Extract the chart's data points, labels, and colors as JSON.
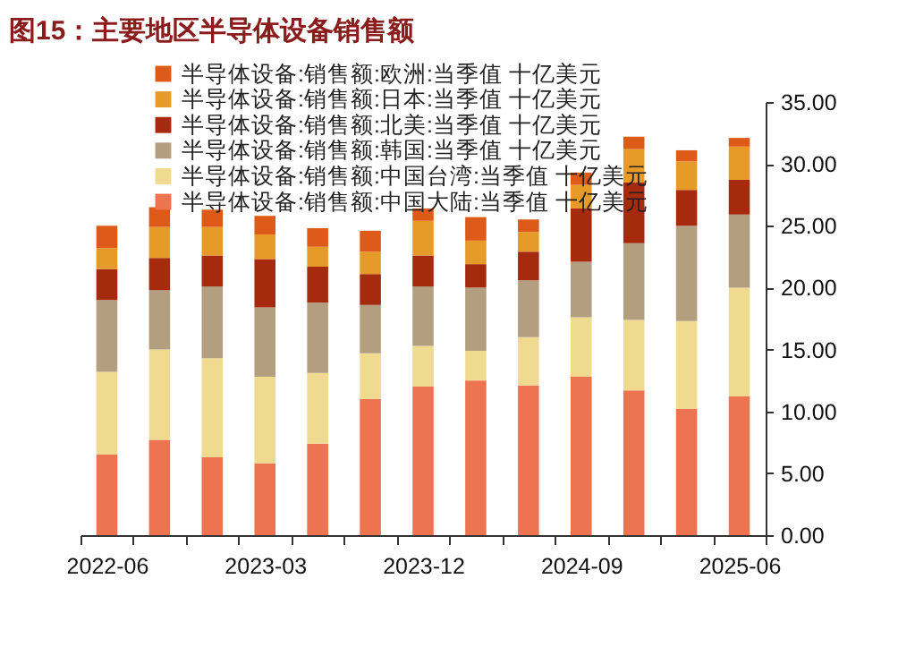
{
  "chart_data": {
    "type": "bar",
    "title": "图15：主要地区半导体设备销售额",
    "categories": [
      "2022-06",
      null,
      null,
      "2023-03",
      null,
      null,
      "2023-12",
      null,
      null,
      "2024-09",
      null,
      null,
      "2025-06"
    ],
    "stacked": true,
    "series": [
      {
        "name": "半导体设备:销售额:中国大陆:当季值 十亿美元",
        "color": "#ee7350",
        "values": [
          6.5,
          7.7,
          6.3,
          5.8,
          7.4,
          11.0,
          12.0,
          12.5,
          12.1,
          12.8,
          11.7,
          10.2,
          11.2
        ]
      },
      {
        "name": "半导体设备:销售额:中国台湾:当季值 十亿美元",
        "color": "#f0da8f",
        "values": [
          6.7,
          7.3,
          8.0,
          7.0,
          5.7,
          3.7,
          3.3,
          2.4,
          3.9,
          4.8,
          5.7,
          7.1,
          8.8
        ]
      },
      {
        "name": "半导体设备:销售额:韩国:当季值 十亿美元",
        "color": "#b39e80",
        "values": [
          5.8,
          4.8,
          5.8,
          5.6,
          5.7,
          3.9,
          4.8,
          5.1,
          4.6,
          4.5,
          6.2,
          7.7,
          5.9
        ]
      },
      {
        "name": "半导体设备:销售额:北美:当季值 十亿美元",
        "color": "#a52a0e",
        "values": [
          2.5,
          2.6,
          2.5,
          3.9,
          2.9,
          2.5,
          2.5,
          1.9,
          2.3,
          4.3,
          4.9,
          2.9,
          2.8
        ]
      },
      {
        "name": "半导体设备:销售额:日本:当季值 十亿美元",
        "color": "#e69a28",
        "values": [
          1.7,
          2.5,
          2.3,
          2.0,
          1.6,
          1.8,
          2.8,
          1.9,
          1.6,
          1.9,
          2.7,
          2.3,
          2.7
        ]
      },
      {
        "name": "半导体设备:销售额:欧洲:当季值 十亿美元",
        "color": "#dd5a18",
        "values": [
          1.8,
          1.6,
          1.4,
          1.5,
          1.5,
          1.7,
          1.0,
          1.9,
          1.0,
          1.0,
          1.0,
          0.9,
          0.7
        ]
      }
    ],
    "ylim": [
      0,
      35
    ],
    "yticks": [
      {
        "value": 0,
        "label": "0.00"
      },
      {
        "value": 5,
        "label": "5.00"
      },
      {
        "value": 10,
        "label": "10.00"
      },
      {
        "value": 15,
        "label": "15.00"
      },
      {
        "value": 20,
        "label": "20.00"
      },
      {
        "value": 25,
        "label": "25.00"
      },
      {
        "value": 30,
        "label": "30.00"
      },
      {
        "value": 35,
        "label": "35.00"
      }
    ],
    "legend": "top left"
  }
}
